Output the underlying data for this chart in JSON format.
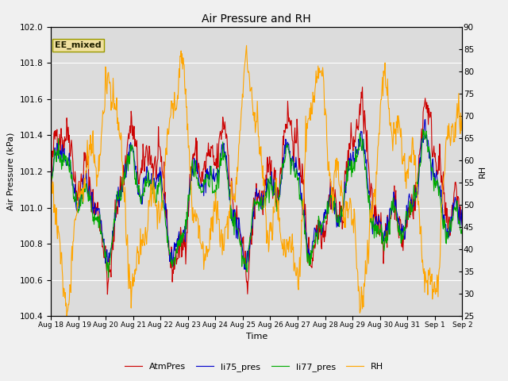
{
  "title": "Air Pressure and RH",
  "xlabel": "Time",
  "ylabel_left": "Air Pressure (kPa)",
  "ylabel_right": "RH",
  "ylim_left": [
    100.4,
    102.0
  ],
  "ylim_right": [
    25,
    90
  ],
  "yticks_left": [
    100.4,
    100.6,
    100.8,
    101.0,
    101.2,
    101.4,
    101.6,
    101.8,
    102.0
  ],
  "yticks_right": [
    25,
    30,
    35,
    40,
    45,
    50,
    55,
    60,
    65,
    70,
    75,
    80,
    85,
    90
  ],
  "xtick_labels": [
    "Aug 18",
    "Aug 19",
    "Aug 20",
    "Aug 21",
    "Aug 22",
    "Aug 23",
    "Aug 24",
    "Aug 25",
    "Aug 26",
    "Aug 27",
    "Aug 28",
    "Aug 29",
    "Aug 30",
    "Aug 31",
    "Sep 1",
    "Sep 2"
  ],
  "color_atm": "#CC0000",
  "color_li75": "#0000CC",
  "color_li77": "#00AA00",
  "color_rh": "#FFA500",
  "legend_labels": [
    "AtmPres",
    "li75_pres",
    "li77_pres",
    "RH"
  ],
  "annotation_text": "EE_mixed",
  "bg_color": "#DCDCDC",
  "fig_bg_color": "#F0F0F0",
  "linewidth": 0.8,
  "grid_color": "#FFFFFF",
  "n_points": 800,
  "seed": 42
}
